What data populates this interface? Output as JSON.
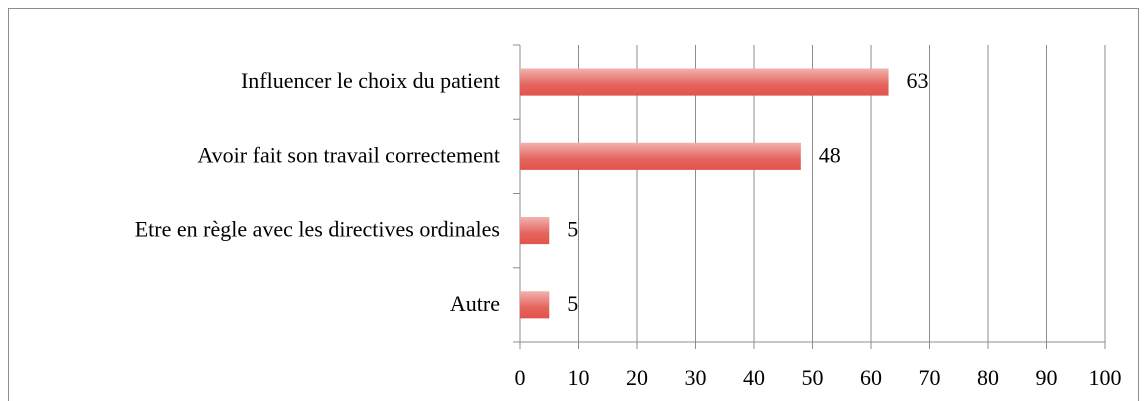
{
  "chart_data": {
    "type": "bar",
    "orientation": "horizontal",
    "categories": [
      "Influencer le choix du patient",
      "Avoir fait son travail correctement",
      "Etre en règle avec les directives ordinales",
      "Autre"
    ],
    "values": [
      63,
      48,
      5,
      5
    ],
    "color": "#e2534c",
    "xlim": [
      0,
      100
    ],
    "xticks": [
      0,
      10,
      20,
      30,
      40,
      50,
      60,
      70,
      80,
      90,
      100
    ],
    "grid": true
  }
}
